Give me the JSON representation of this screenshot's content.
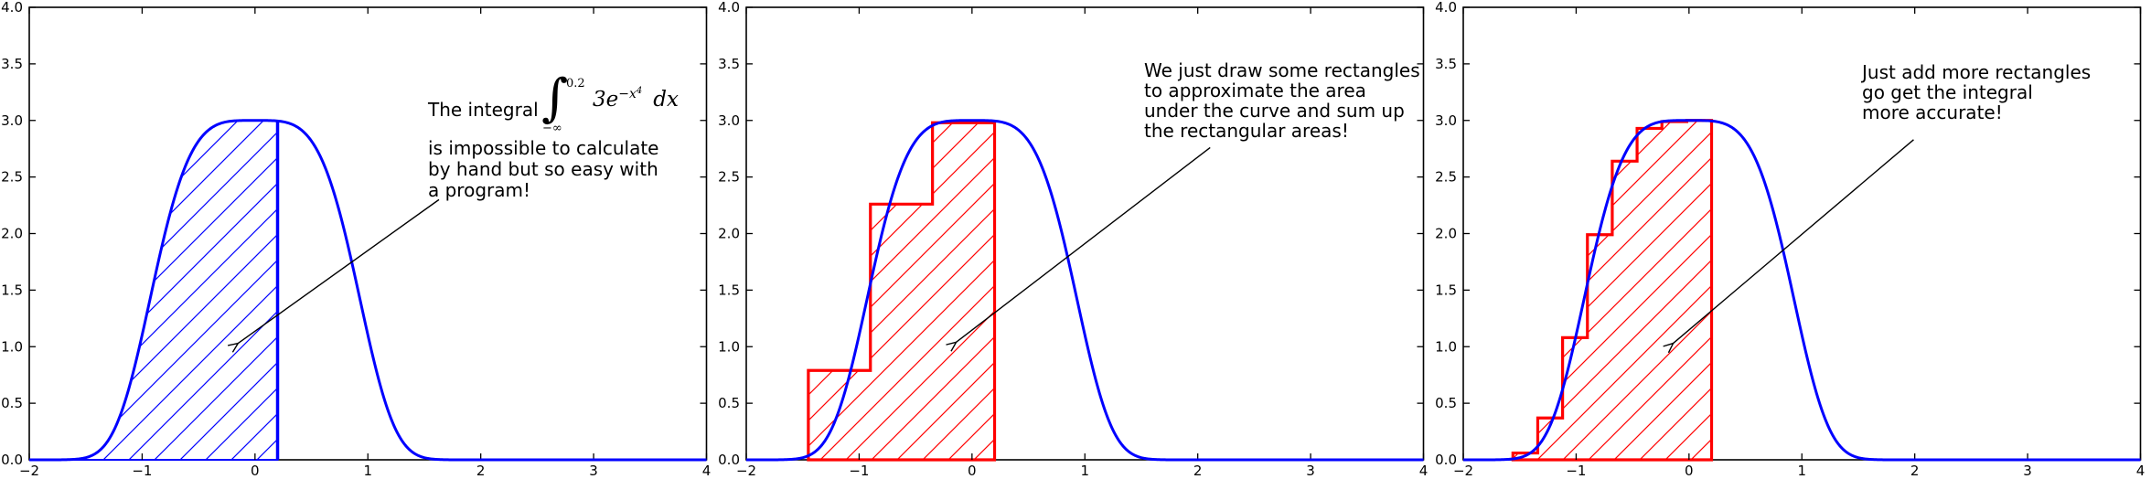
{
  "figure": {
    "background": "#ffffff",
    "axis_color": "#000000",
    "curve_color": "#0000ff",
    "blue_region_color": "#0000ff",
    "red_region_color": "#ff0000",
    "arrow_color": "#000000"
  },
  "chart_data": [
    {
      "id": "exact-integral-panel",
      "type": "area",
      "title": "",
      "xlabel": "",
      "ylabel": "",
      "x_range": [
        -2,
        4
      ],
      "y_range": [
        0,
        4
      ],
      "x_tick_values": [
        -2,
        -1,
        0,
        1,
        2,
        3,
        4
      ],
      "x_tick_labels": [
        "−2",
        "−1",
        "0",
        "1",
        "2",
        "3",
        "4"
      ],
      "y_tick_values": [
        0,
        0.5,
        1,
        1.5,
        2,
        2.5,
        3,
        3.5,
        4
      ],
      "y_tick_labels": [
        "0.0",
        "0.5",
        "1.0",
        "1.5",
        "2.0",
        "2.5",
        "3.0",
        "3.5",
        "4.0"
      ],
      "grid": false,
      "curve": {
        "formula": "y = 3*exp(-x^4)",
        "amplitude": 3,
        "exponent_power": 4,
        "x_min": -2,
        "x_max": 4,
        "color": "#0000ff"
      },
      "shaded_region": {
        "kind": "under_curve",
        "x_from": -2,
        "x_to": 0.2,
        "hatch": "/",
        "color": "#0000ff",
        "boundary_line_x": 0.2,
        "boundary_line_top": 2.995
      },
      "annotation": {
        "intro": "The integral",
        "integral": {
          "symbol": "∫",
          "upper_limit": "0.2",
          "lower_limit": "−∞",
          "integrand_base": "3e",
          "exponent": "−x",
          "exponent_power": "4",
          "differential": "dx"
        },
        "lines": [
          "is impossible to calculate",
          "by hand but so easy with",
          "a program!"
        ],
        "arrow_tail_data": [
          1.63,
          2.3
        ],
        "arrow_tip_data": [
          -0.15,
          1.03
        ]
      }
    },
    {
      "id": "coarse-rectangles-panel",
      "type": "area",
      "title": "",
      "xlabel": "",
      "ylabel": "",
      "x_range": [
        -2,
        4
      ],
      "y_range": [
        0,
        4
      ],
      "x_tick_values": [
        -2,
        -1,
        0,
        1,
        2,
        3,
        4
      ],
      "x_tick_labels": [
        "−2",
        "−1",
        "0",
        "1",
        "2",
        "3",
        "4"
      ],
      "y_tick_values": [
        0,
        0.5,
        1,
        1.5,
        2,
        2.5,
        3,
        3.5,
        4
      ],
      "y_tick_labels": [
        "0.0",
        "0.5",
        "1.0",
        "1.5",
        "2.0",
        "2.5",
        "3.0",
        "3.5",
        "4.0"
      ],
      "grid": false,
      "curve": {
        "formula": "y = 3*exp(-x^4)",
        "amplitude": 3,
        "exponent_power": 4,
        "x_min": -2,
        "x_max": 4,
        "color": "#0000ff"
      },
      "rectangles": {
        "edges": [
          -1.45,
          -0.9,
          -0.35,
          0.2
        ],
        "heights": [
          0.79,
          2.26,
          2.98
        ],
        "hatch": "/",
        "color": "#ff0000"
      },
      "annotation": {
        "lines": [
          "We just draw some rectangles",
          "to approximate the area",
          "under the curve and sum up",
          "the rectangular areas!"
        ],
        "arrow_tail_data": [
          2.11,
          2.76
        ],
        "arrow_tip_data": [
          -0.14,
          1.04
        ]
      }
    },
    {
      "id": "fine-rectangles-panel",
      "type": "area",
      "title": "",
      "xlabel": "",
      "ylabel": "",
      "x_range": [
        -2,
        4
      ],
      "y_range": [
        0,
        4
      ],
      "x_tick_values": [
        -2,
        -1,
        0,
        1,
        2,
        3,
        4
      ],
      "x_tick_labels": [
        "−2",
        "−1",
        "0",
        "1",
        "2",
        "3",
        "4"
      ],
      "y_tick_values": [
        0,
        0.5,
        1,
        1.5,
        2,
        2.5,
        3,
        3.5,
        4
      ],
      "y_tick_labels": [
        "0.0",
        "0.5",
        "1.0",
        "1.5",
        "2.0",
        "2.5",
        "3.0",
        "3.5",
        "4.0"
      ],
      "grid": false,
      "curve": {
        "formula": "y = 3*exp(-x^4)",
        "amplitude": 3,
        "exponent_power": 4,
        "x_min": -2,
        "x_max": 4,
        "color": "#0000ff"
      },
      "rectangles": {
        "edges": [
          -1.56,
          -1.34,
          -1.12,
          -0.9,
          -0.68,
          -0.46,
          -0.24,
          -0.02,
          0.2
        ],
        "heights": [
          0.06,
          0.37,
          1.08,
          1.99,
          2.64,
          2.93,
          2.99,
          3.0
        ],
        "hatch": "/",
        "color": "#ff0000"
      },
      "annotation": {
        "lines": [
          "Just add more rectangles",
          "go get the integral",
          "more accurate!"
        ],
        "arrow_tail_data": [
          1.99,
          2.83
        ],
        "arrow_tip_data": [
          -0.14,
          1.03
        ]
      }
    }
  ]
}
